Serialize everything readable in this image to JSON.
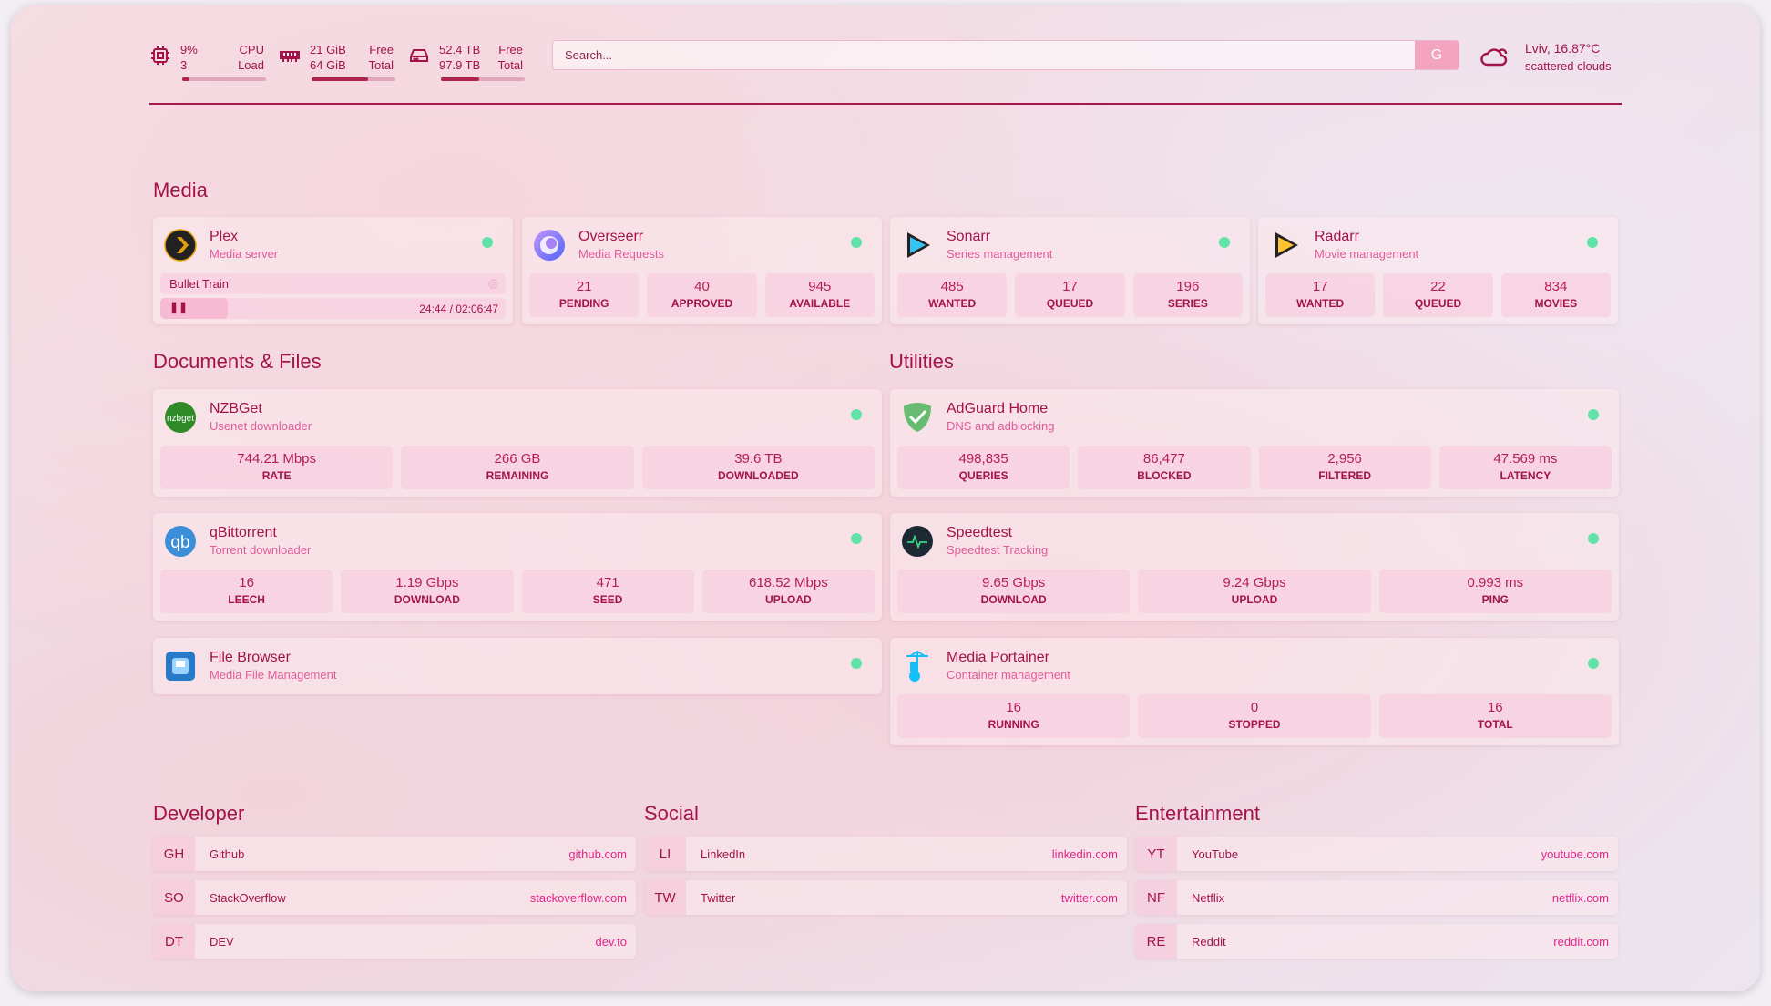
{
  "header": {
    "cpu": {
      "icon": "cpu-icon",
      "v1": "9%",
      "v2": "3",
      "l1": "CPU",
      "l2": "Load",
      "usage_pct": 9
    },
    "memory": {
      "icon": "ram-icon",
      "v1": "21 GiB",
      "v2": "64 GiB",
      "l1": "Free",
      "l2": "Total",
      "usage_pct": 67
    },
    "disk": {
      "icon": "hard-drive-icon",
      "v1": "52.4 TB",
      "v2": "97.9 TB",
      "l1": "Free",
      "l2": "Total",
      "usage_pct": 46
    },
    "search": {
      "placeholder": "Search...",
      "engine_button": "G"
    },
    "weather": {
      "icon": "cloud-icon",
      "location": "Lviv, 16.87°C",
      "condition": "scattered clouds"
    }
  },
  "colors": {
    "accent": "#a3134a",
    "status_online": "#5fe3a8",
    "link": "#e4248a"
  },
  "sections": {
    "media": "Media",
    "docs": "Documents & Files",
    "utilities": "Utilities",
    "developer": "Developer",
    "social": "Social",
    "entertainment": "Entertainment"
  },
  "cards": [
    {
      "id": "plex",
      "name": "Plex",
      "desc": "Media server",
      "icon": "plex-icon",
      "nowplaying": {
        "title": "Bullet Train",
        "time": "24:44 / 02:06:47",
        "state": "paused",
        "progress_pct": 19.5
      }
    },
    {
      "id": "overseerr",
      "name": "Overseerr",
      "desc": "Media Requests",
      "icon": "overseerr-icon",
      "stats": [
        {
          "v": "21",
          "l": "PENDING"
        },
        {
          "v": "40",
          "l": "APPROVED"
        },
        {
          "v": "945",
          "l": "AVAILABLE"
        }
      ]
    },
    {
      "id": "sonarr",
      "name": "Sonarr",
      "desc": "Series management",
      "icon": "sonarr-icon",
      "stats": [
        {
          "v": "485",
          "l": "WANTED"
        },
        {
          "v": "17",
          "l": "QUEUED"
        },
        {
          "v": "196",
          "l": "SERIES"
        }
      ]
    },
    {
      "id": "radarr",
      "name": "Radarr",
      "desc": "Movie management",
      "icon": "radarr-icon",
      "stats": [
        {
          "v": "17",
          "l": "WANTED"
        },
        {
          "v": "22",
          "l": "QUEUED"
        },
        {
          "v": "834",
          "l": "MOVIES"
        }
      ]
    },
    {
      "id": "nzbget",
      "name": "NZBGet",
      "desc": "Usenet downloader",
      "icon": "nzbget-icon",
      "stats": [
        {
          "v": "744.21 Mbps",
          "l": "RATE"
        },
        {
          "v": "266 GB",
          "l": "REMAINING"
        },
        {
          "v": "39.6 TB",
          "l": "DOWNLOADED"
        }
      ]
    },
    {
      "id": "qbittorrent",
      "name": "qBittorrent",
      "desc": "Torrent downloader",
      "icon": "qbittorrent-icon",
      "stats": [
        {
          "v": "16",
          "l": "LEECH"
        },
        {
          "v": "1.19 Gbps",
          "l": "DOWNLOAD"
        },
        {
          "v": "471",
          "l": "SEED"
        },
        {
          "v": "618.52 Mbps",
          "l": "UPLOAD"
        }
      ]
    },
    {
      "id": "filebrowser",
      "name": "File Browser",
      "desc": "Media File Management",
      "icon": "file-browser-icon"
    },
    {
      "id": "adguard",
      "name": "AdGuard Home",
      "desc": "DNS and adblocking",
      "icon": "adguard-icon",
      "stats": [
        {
          "v": "498,835",
          "l": "QUERIES"
        },
        {
          "v": "86,477",
          "l": "BLOCKED"
        },
        {
          "v": "2,956",
          "l": "FILTERED"
        },
        {
          "v": "47.569 ms",
          "l": "LATENCY"
        }
      ]
    },
    {
      "id": "speedtest",
      "name": "Speedtest",
      "desc": "Speedtest Tracking",
      "icon": "speedtest-icon",
      "stats": [
        {
          "v": "9.65 Gbps",
          "l": "DOWNLOAD"
        },
        {
          "v": "9.24 Gbps",
          "l": "UPLOAD"
        },
        {
          "v": "0.993 ms",
          "l": "PING"
        }
      ]
    },
    {
      "id": "portainer",
      "name": "Media Portainer",
      "desc": "Container management",
      "icon": "portainer-icon",
      "stats": [
        {
          "v": "16",
          "l": "RUNNING"
        },
        {
          "v": "0",
          "l": "STOPPED"
        },
        {
          "v": "16",
          "l": "TOTAL"
        }
      ]
    }
  ],
  "bookmarks": [
    [
      {
        "abbr": "GH",
        "name": "Github",
        "url": "github.com"
      },
      {
        "abbr": "SO",
        "name": "StackOverflow",
        "url": "stackoverflow.com"
      },
      {
        "abbr": "DT",
        "name": "DEV",
        "url": "dev.to"
      }
    ],
    [
      {
        "abbr": "LI",
        "name": "LinkedIn",
        "url": "linkedin.com"
      },
      {
        "abbr": "TW",
        "name": "Twitter",
        "url": "twitter.com"
      }
    ],
    [
      {
        "abbr": "YT",
        "name": "YouTube",
        "url": "youtube.com"
      },
      {
        "abbr": "NF",
        "name": "Netflix",
        "url": "netflix.com"
      },
      {
        "abbr": "RE",
        "name": "Reddit",
        "url": "reddit.com"
      }
    ]
  ]
}
